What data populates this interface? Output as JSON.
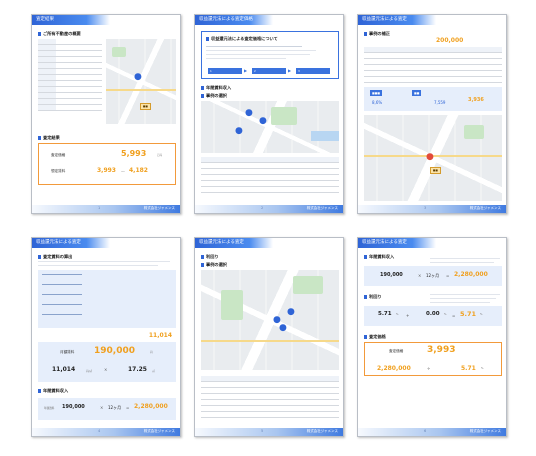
{
  "pages": [
    {
      "header": "査定結果",
      "footer_page": "1",
      "footer_company": "株式会社ジャメンス",
      "section1": "ご所有不動産の概要",
      "section2": "査定結果",
      "result_label1": "査定価格",
      "result_value1": "5,993",
      "result_label2": "想定賃料",
      "result_value2": "3,993",
      "result_value3": "4,182",
      "unit_man": "万円"
    },
    {
      "header": "収益還元法による査定価格",
      "footer_page": "2",
      "footer_company": "株式会社ジャメンス",
      "section1": "収益還元法による査定価格について",
      "section2": "年間賃料収入",
      "section3": "事例の選択",
      "steps": [
        "1",
        "2",
        "3"
      ]
    },
    {
      "header": "収益還元法による査定",
      "footer_page": "3",
      "footer_company": "株式会社ジャメンス",
      "section1": "事例の補正",
      "top_value": "200,000",
      "value_a": "8,6%",
      "value_b": "7,559",
      "value_c": "3,936"
    },
    {
      "header": "収益還元法による査定",
      "footer_page": "4",
      "footer_company": "株式会社ジャメンス",
      "section1": "査定賃料の算出",
      "section2": "年間賃料収入",
      "total_value": "11,014",
      "rent_label": "月額賃料",
      "rent_value": "190,000",
      "unit_yen": "円",
      "area_value": "11,014",
      "area_unit": "円/㎡",
      "area2_value": "17.25",
      "area2_unit": "㎡",
      "annual_label": "年額賃料",
      "annual_a": "190,000",
      "annual_mult": "12ヶ月",
      "annual_result": "2,280,000"
    },
    {
      "header": "収益還元法による査定",
      "footer_page": "5",
      "footer_company": "株式会社ジャメンス",
      "section1": "利回り",
      "section2": "事例の選択"
    },
    {
      "header": "収益還元法による査定",
      "footer_page": "6",
      "footer_company": "株式会社ジャメンス",
      "section1": "年間賃料収入",
      "s1_a": "190,000",
      "s1_b": "12ヶ月",
      "s1_c": "2,280,000",
      "section2": "利回り",
      "s2_a": "5.71",
      "s2_b": "0.00",
      "s2_c": "5.71",
      "section3": "査定価格",
      "final_label": "査定価格",
      "final_value": "3,993",
      "final_a": "2,280,000",
      "final_b": "5.71",
      "unit_pct": "%"
    }
  ],
  "colors": {
    "accent_blue": "#2f64d6",
    "accent_orange": "#f0a01f",
    "map_bg": "#e9ecef"
  }
}
